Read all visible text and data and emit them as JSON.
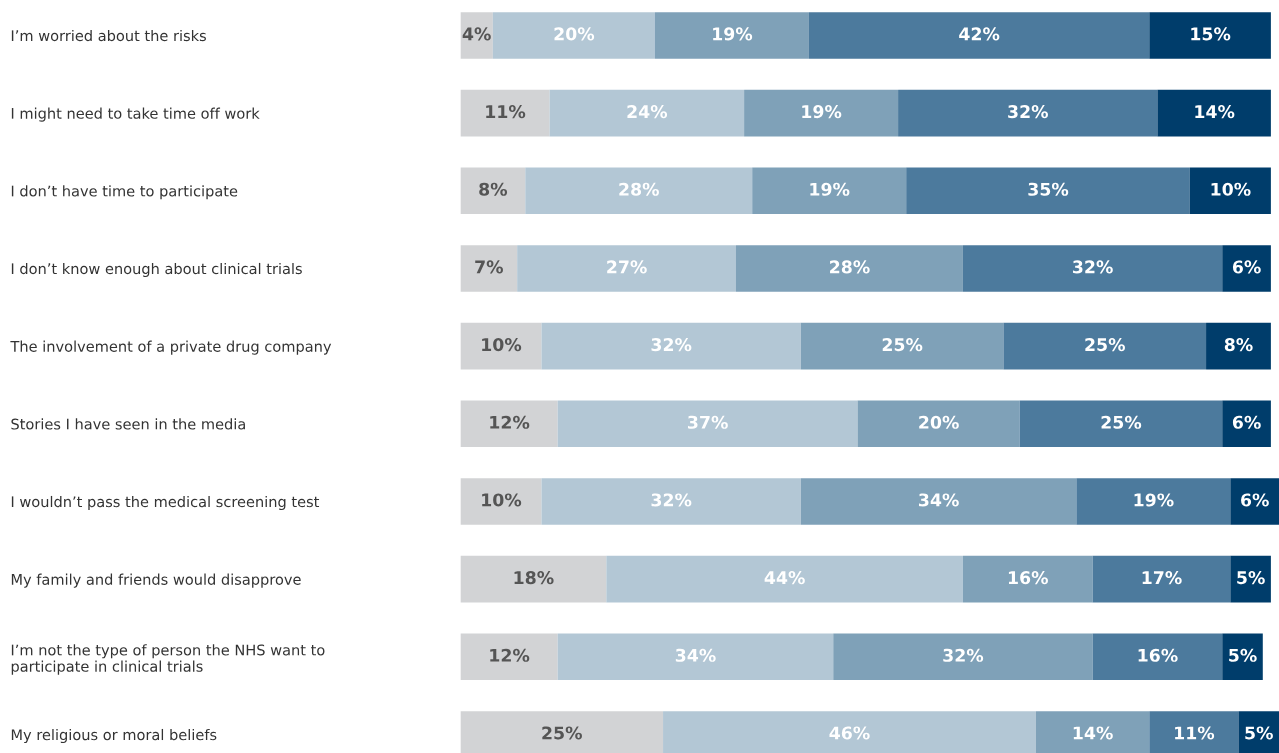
{
  "chart_data": {
    "type": "bar",
    "orientation": "horizontal",
    "stacked": true,
    "tick_labels": "y",
    "grid": false,
    "categories": [
      "I’m worried about the risks",
      "I might need to take time off work",
      "I don’t have time to participate",
      "I don’t know enough about clinical trials",
      "The involvement of a private drug company",
      "Stories I have seen in the media",
      "I wouldn’t pass the medical screening test",
      "My family and friends would disapprove",
      "I’m not the type of person the NHS want to\nparticipate in clinical trials",
      "My religious or moral beliefs"
    ],
    "series": [
      {
        "color": "#d2d3d5",
        "values": [
          4,
          11,
          8,
          7,
          10,
          12,
          10,
          18,
          12,
          25
        ],
        "value_labels": [
          "4%",
          "11%",
          "8%",
          "7%",
          "10%",
          "12%",
          "10%",
          "18%",
          "12%",
          "25%"
        ]
      },
      {
        "color": "#b3c7d5",
        "values": [
          20,
          24,
          28,
          27,
          32,
          37,
          32,
          44,
          34,
          46
        ],
        "value_labels": [
          "20%",
          "24%",
          "28%",
          "27%",
          "32%",
          "37%",
          "32%",
          "44%",
          "34%",
          "46%"
        ]
      },
      {
        "color": "#7fa1b8",
        "values": [
          19,
          19,
          19,
          28,
          25,
          20,
          34,
          16,
          32,
          14
        ],
        "value_labels": [
          "19%",
          "19%",
          "19%",
          "28%",
          "25%",
          "20%",
          "34%",
          "16%",
          "32%",
          "14%"
        ]
      },
      {
        "color": "#4c7a9d",
        "values": [
          42,
          32,
          35,
          32,
          25,
          25,
          19,
          17,
          16,
          11
        ],
        "value_labels": [
          "42%",
          "32%",
          "35%",
          "32%",
          "25%",
          "25%",
          "19%",
          "17%",
          "16%",
          "11%"
        ]
      },
      {
        "color": "#003d6b",
        "values": [
          15,
          14,
          10,
          6,
          8,
          6,
          6,
          5,
          5,
          5
        ],
        "value_labels": [
          "15%",
          "14%",
          "10%",
          "6%",
          "8%",
          "6%",
          "6%",
          "5%",
          "5%",
          "5%"
        ]
      }
    ]
  }
}
